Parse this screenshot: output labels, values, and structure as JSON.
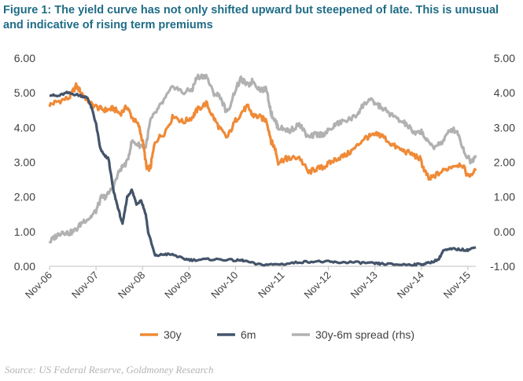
{
  "title": "Figure 1: The yield curve has not only shifted upward but steepened of late. This is unusual and indicative of rising term premiums",
  "source": "Source: US Federal Reserve, Goldmoney Research",
  "chart_data": {
    "type": "line",
    "title": "Figure 1: The yield curve has not only shifted upward but steepened of late. This is unusual and indicative of rising term premiums",
    "x_ticks": [
      "Nov-06",
      "Nov-07",
      "Nov-08",
      "Nov-09",
      "Nov-10",
      "Nov-11",
      "Nov-12",
      "Nov-13",
      "Nov-14",
      "Nov-15"
    ],
    "x_range": [
      2006.83,
      2016.0
    ],
    "y_left": {
      "ticks": [
        "0.00",
        "1.00",
        "2.00",
        "3.00",
        "4.00",
        "5.00",
        "6.00"
      ],
      "range": [
        0,
        6
      ]
    },
    "y_right": {
      "ticks": [
        "-1.00",
        "0.00",
        "1.00",
        "2.00",
        "3.00",
        "4.00",
        "5.00"
      ],
      "range": [
        -1,
        5
      ]
    },
    "legend": [
      "30y",
      "6m",
      "30y-6m spread (rhs)"
    ],
    "colors": {
      "s30y": "#ef8a37",
      "s6m": "#44546a",
      "spread": "#b1b1b1"
    },
    "series": [
      {
        "name": "30y",
        "axis": "left",
        "x": [
          2006.83,
          2007.0,
          2007.25,
          2007.4,
          2007.55,
          2007.7,
          2007.9,
          2008.05,
          2008.2,
          2008.35,
          2008.5,
          2008.6,
          2008.75,
          2008.85,
          2008.92,
          2009.0,
          2009.1,
          2009.3,
          2009.5,
          2009.7,
          2009.9,
          2010.0,
          2010.2,
          2010.35,
          2010.5,
          2010.65,
          2010.83,
          2011.0,
          2011.1,
          2011.2,
          2011.35,
          2011.5,
          2011.6,
          2011.68,
          2011.75,
          2011.9,
          2012.0,
          2012.2,
          2012.4,
          2012.55,
          2012.7,
          2012.83,
          2013.0,
          2013.2,
          2013.4,
          2013.6,
          2013.75,
          2013.9,
          2014.0,
          2014.2,
          2014.4,
          2014.6,
          2014.8,
          2014.9,
          2015.0,
          2015.1,
          2015.3,
          2015.5,
          2015.7,
          2015.83,
          2016.0
        ],
        "y": [
          4.65,
          4.75,
          4.85,
          5.2,
          4.95,
          4.7,
          4.55,
          4.5,
          4.55,
          4.4,
          4.6,
          4.3,
          4.05,
          3.5,
          2.8,
          2.85,
          3.6,
          3.85,
          4.35,
          4.15,
          4.3,
          4.5,
          4.7,
          4.3,
          3.95,
          3.7,
          4.2,
          4.5,
          4.6,
          4.35,
          4.3,
          4.2,
          3.6,
          3.4,
          3.0,
          3.1,
          3.1,
          3.15,
          2.7,
          2.8,
          2.85,
          2.95,
          3.1,
          3.2,
          3.4,
          3.7,
          3.75,
          3.8,
          3.75,
          3.5,
          3.35,
          3.25,
          3.1,
          2.75,
          2.5,
          2.6,
          2.75,
          2.9,
          2.95,
          2.6,
          2.75
        ]
      },
      {
        "name": "6m",
        "axis": "left",
        "x": [
          2006.83,
          2007.0,
          2007.2,
          2007.4,
          2007.55,
          2007.65,
          2007.75,
          2007.83,
          2007.92,
          2008.0,
          2008.1,
          2008.2,
          2008.3,
          2008.4,
          2008.5,
          2008.6,
          2008.7,
          2008.8,
          2008.9,
          2008.95,
          2009.1,
          2009.3,
          2009.5,
          2009.7,
          2009.9,
          2010.2,
          2010.5,
          2010.83,
          2011.0,
          2011.3,
          2011.6,
          2011.9,
          2012.2,
          2012.5,
          2012.83,
          2013.0,
          2013.3,
          2013.6,
          2013.83,
          2014.0,
          2014.3,
          2014.6,
          2014.83,
          2015.0,
          2015.2,
          2015.3,
          2015.5,
          2015.7,
          2015.83,
          2016.0
        ],
        "y": [
          4.95,
          4.9,
          5.0,
          4.95,
          4.9,
          4.85,
          4.5,
          4.1,
          3.4,
          3.2,
          3.1,
          2.2,
          1.7,
          1.2,
          2.0,
          2.2,
          1.8,
          1.9,
          1.5,
          1.0,
          0.3,
          0.35,
          0.33,
          0.22,
          0.18,
          0.2,
          0.2,
          0.17,
          0.17,
          0.05,
          0.05,
          0.07,
          0.12,
          0.14,
          0.13,
          0.11,
          0.12,
          0.1,
          0.08,
          0.07,
          0.05,
          0.05,
          0.06,
          0.1,
          0.2,
          0.45,
          0.5,
          0.48,
          0.47,
          0.55
        ]
      },
      {
        "name": "30y-6m spread (rhs)",
        "axis": "right",
        "x": [
          2006.83,
          2006.95,
          2007.1,
          2007.25,
          2007.4,
          2007.55,
          2007.7,
          2007.83,
          2007.95,
          2008.05,
          2008.2,
          2008.35,
          2008.5,
          2008.6,
          2008.75,
          2008.9,
          2009.0,
          2009.15,
          2009.3,
          2009.5,
          2009.7,
          2009.9,
          2010.0,
          2010.2,
          2010.35,
          2010.5,
          2010.65,
          2010.83,
          2010.95,
          2011.1,
          2011.2,
          2011.35,
          2011.5,
          2011.6,
          2011.68,
          2011.75,
          2011.9,
          2012.0,
          2012.2,
          2012.4,
          2012.55,
          2012.7,
          2012.83,
          2013.0,
          2013.2,
          2013.4,
          2013.55,
          2013.7,
          2013.83,
          2014.0,
          2014.15,
          2014.35,
          2014.5,
          2014.7,
          2014.83,
          2014.95,
          2015.1,
          2015.3,
          2015.45,
          2015.6,
          2015.75,
          2015.9,
          2016.0
        ],
        "y": [
          -0.3,
          -0.15,
          0.0,
          -0.05,
          0.05,
          0.3,
          0.4,
          0.6,
          1.0,
          1.0,
          1.3,
          1.8,
          2.0,
          2.6,
          2.5,
          2.45,
          3.2,
          3.5,
          3.8,
          4.2,
          4.0,
          4.1,
          4.45,
          4.5,
          4.0,
          3.9,
          3.4,
          4.1,
          4.4,
          4.2,
          4.35,
          4.1,
          4.1,
          3.4,
          3.2,
          3.0,
          2.95,
          2.9,
          3.1,
          2.7,
          2.8,
          2.8,
          2.9,
          3.1,
          3.2,
          3.3,
          3.6,
          3.8,
          3.7,
          3.55,
          3.4,
          3.2,
          3.1,
          2.8,
          2.9,
          2.6,
          2.45,
          2.6,
          2.95,
          2.9,
          2.3,
          2.0,
          2.2
        ]
      }
    ]
  }
}
